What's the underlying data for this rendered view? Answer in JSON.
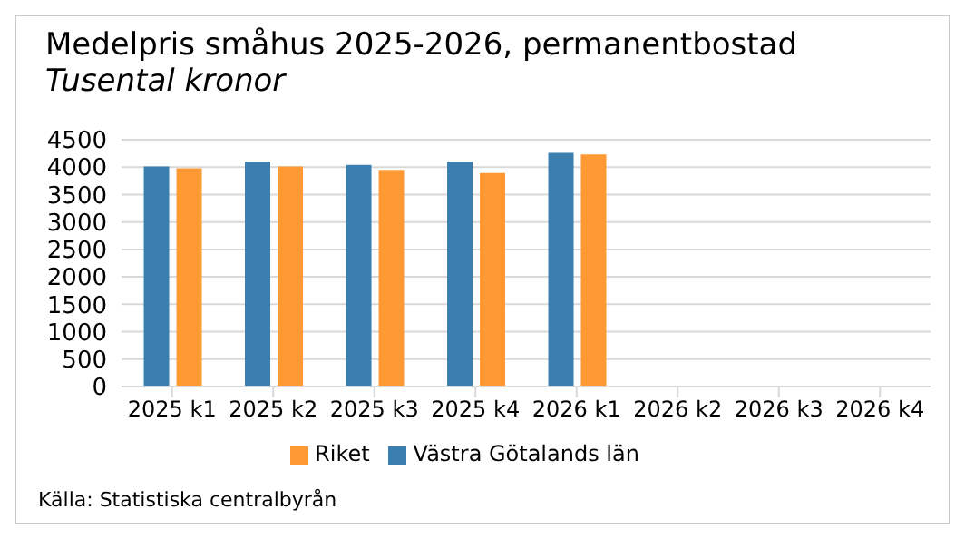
{
  "chart_data": {
    "type": "bar",
    "title": "Medelpris småhus 2025-2026, permanentbostad",
    "subtitle": "Tusental kronor",
    "categories": [
      "2025 k1",
      "2025 k2",
      "2025 k3",
      "2025 k4",
      "2026 k1",
      "2026 k2",
      "2026 k3",
      "2026 k4"
    ],
    "series": [
      {
        "name": "Västra Götalands län",
        "color": "#3a7fb0",
        "values": [
          4010,
          4100,
          4040,
          4100,
          4260,
          null,
          null,
          null
        ]
      },
      {
        "name": "Riket",
        "color": "#ff9933",
        "values": [
          3980,
          4010,
          3950,
          3890,
          4230,
          null,
          null,
          null
        ]
      }
    ],
    "ylim": [
      0,
      4500
    ],
    "yticks": [
      0,
      500,
      1000,
      1500,
      2000,
      2500,
      3000,
      3500,
      4000,
      4500
    ],
    "grid": "y",
    "legend": "bottom",
    "annotations": [
      "Källa: Statistiska centralbyrån"
    ]
  }
}
